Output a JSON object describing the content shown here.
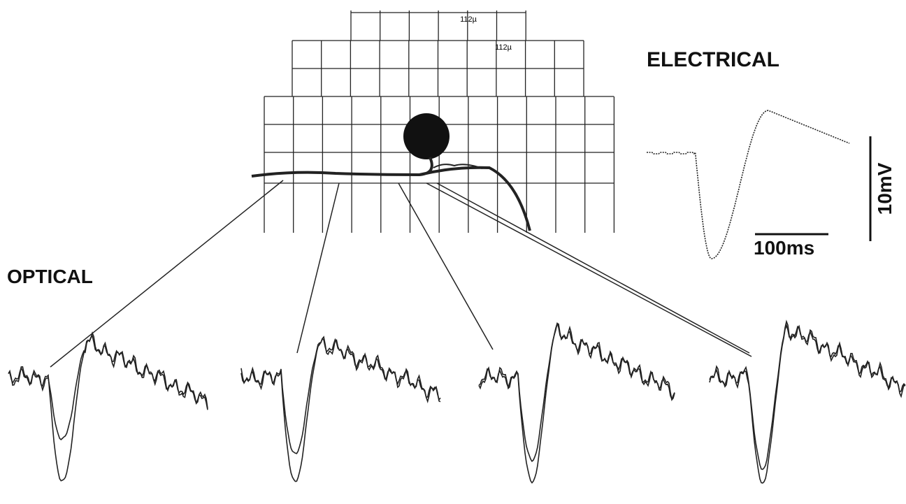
{
  "grid_labels": [
    "112µ",
    "112µ"
  ],
  "electrical": {
    "title": "ELECTRICAL",
    "voltage_scale": "10mV",
    "time_scale": "100ms"
  },
  "optical": {
    "title": "OPTICAL"
  }
}
